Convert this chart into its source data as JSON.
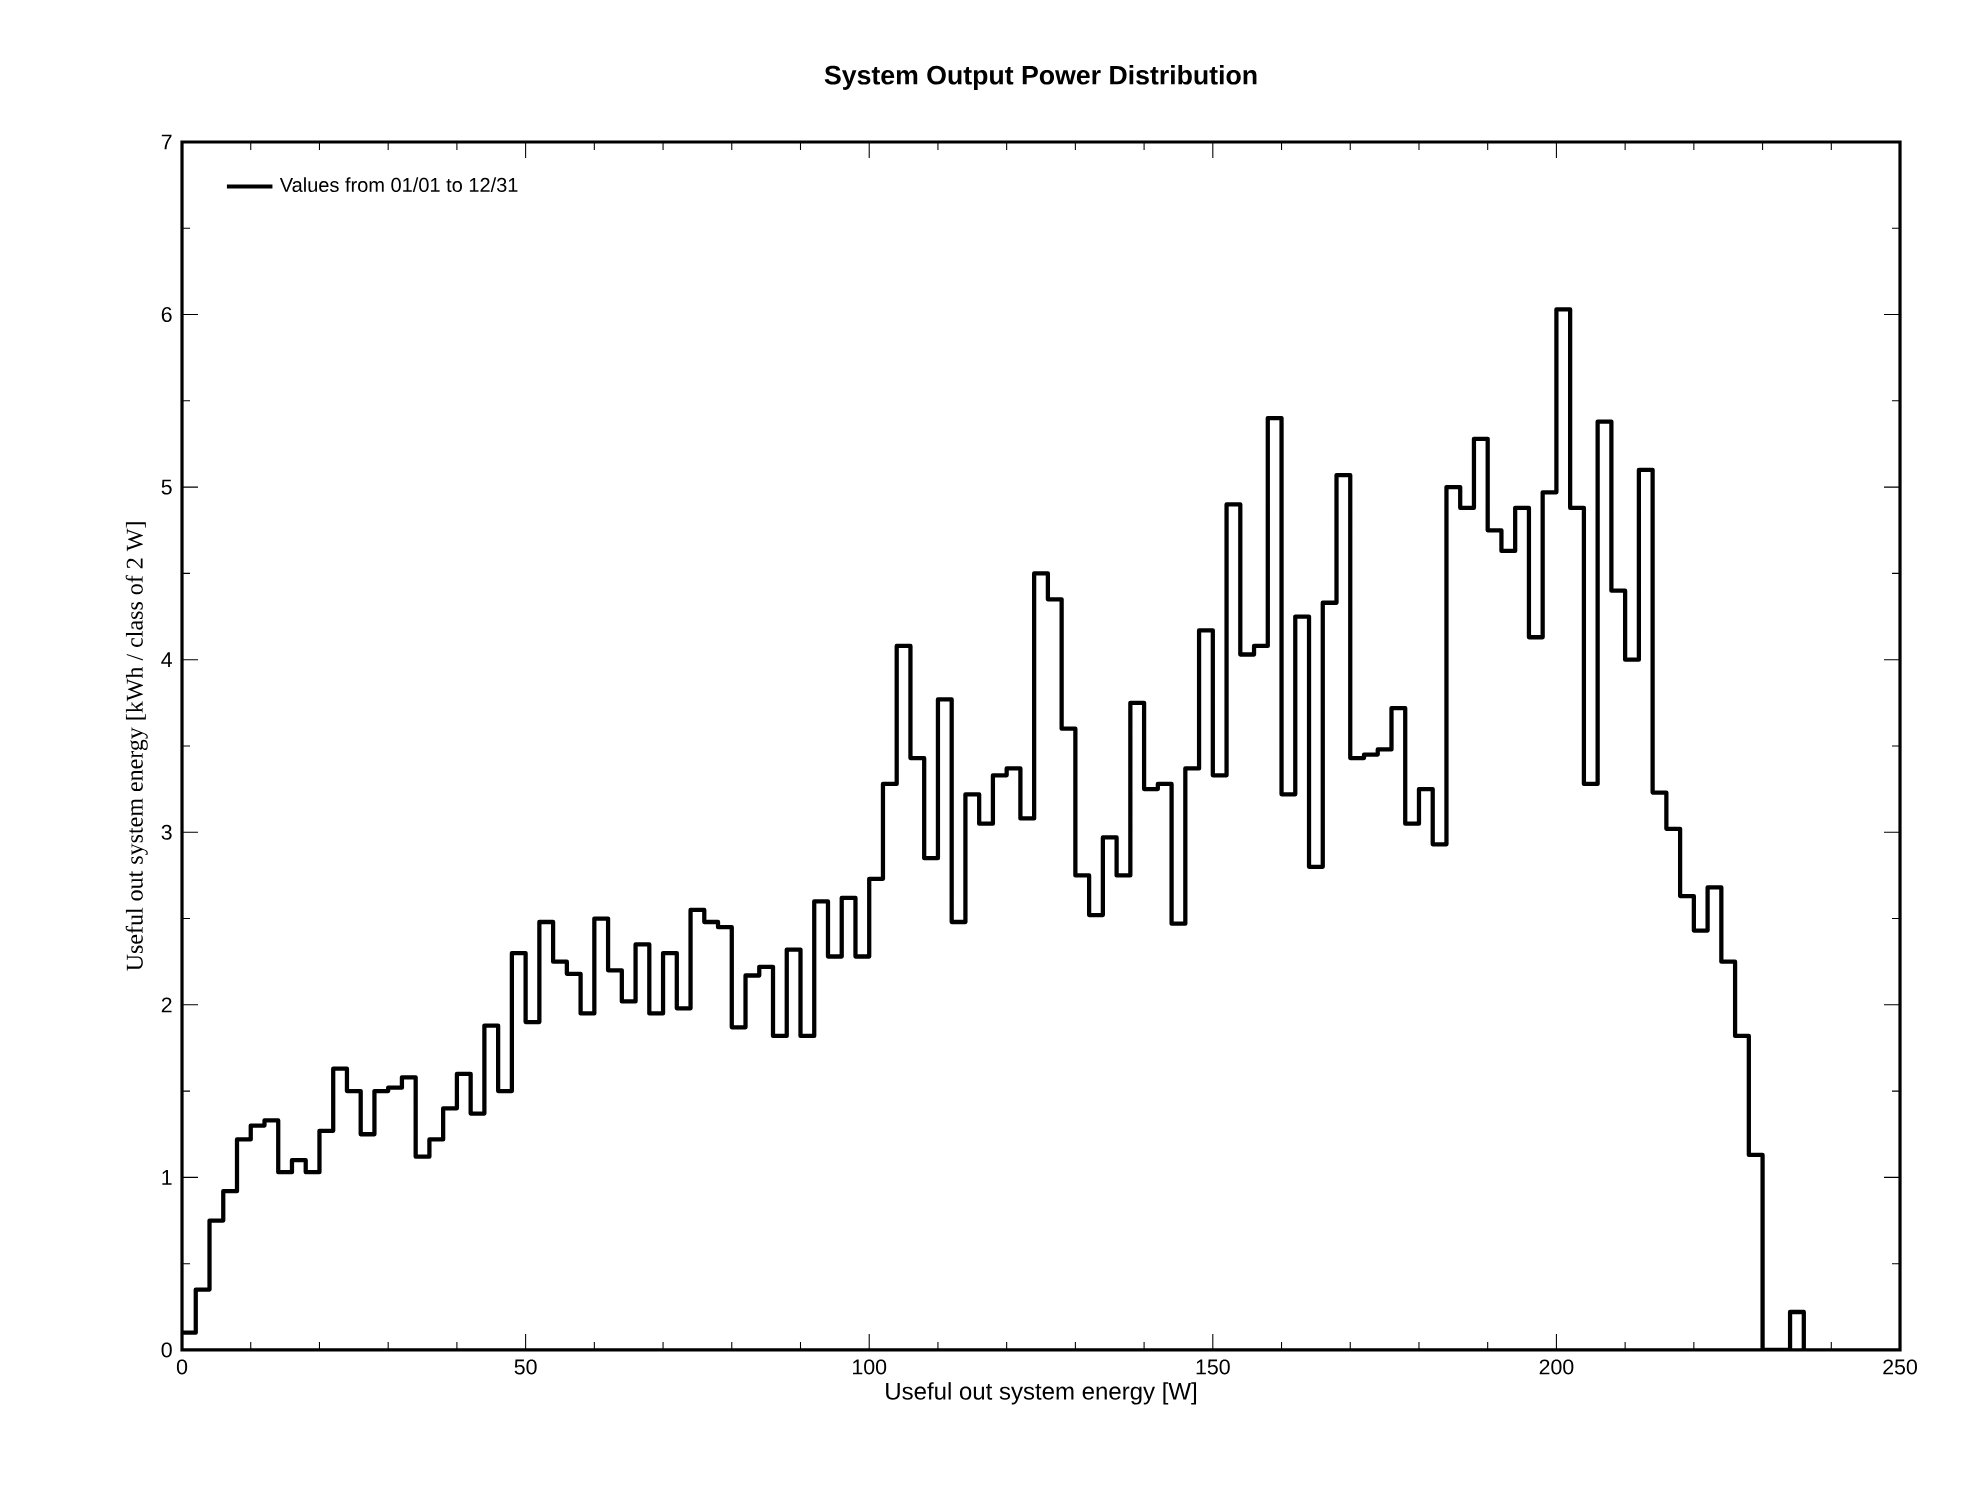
{
  "chart_data": {
    "type": "histogram",
    "title": "System Output Power Distribution",
    "xlabel": "Useful out system energy [W]",
    "ylabel": "Useful out system energy [kWh / class of 2 W]",
    "series": [
      {
        "name": "Values from 01/01 to 12/31",
        "color": "#000000",
        "values": [
          0.1,
          0.35,
          0.75,
          0.92,
          1.22,
          1.3,
          1.33,
          1.03,
          1.1,
          1.03,
          1.27,
          1.63,
          1.5,
          1.25,
          1.5,
          1.52,
          1.58,
          1.12,
          1.22,
          1.4,
          1.6,
          1.37,
          1.88,
          1.5,
          2.3,
          1.9,
          2.48,
          2.25,
          2.18,
          1.95,
          2.5,
          2.2,
          2.02,
          2.35,
          1.95,
          2.3,
          1.98,
          2.55,
          2.48,
          2.45,
          1.87,
          2.17,
          2.22,
          1.82,
          2.32,
          1.82,
          2.6,
          2.28,
          2.62,
          2.28,
          2.73,
          3.28,
          4.08,
          3.43,
          2.85,
          3.77,
          2.48,
          3.22,
          3.05,
          3.33,
          3.37,
          3.08,
          4.5,
          4.35,
          3.6,
          2.75,
          2.52,
          2.97,
          2.75,
          3.75,
          3.25,
          3.28,
          2.47,
          3.37,
          4.17,
          3.33,
          4.9,
          4.03,
          4.08,
          5.4,
          3.22,
          4.25,
          2.8,
          4.33,
          5.07,
          3.43,
          3.45,
          3.48,
          3.72,
          3.05,
          3.25,
          2.93,
          5.0,
          4.88,
          5.28,
          4.75,
          4.63,
          4.88,
          4.13,
          4.97,
          6.03,
          4.88,
          3.28,
          5.38,
          4.4,
          4.0,
          5.1,
          3.23,
          3.02,
          2.63,
          2.43,
          2.68,
          2.25,
          1.82,
          1.13,
          0,
          0,
          0.22
        ]
      }
    ],
    "bins": [
      0,
      2,
      4,
      6,
      8,
      10,
      12,
      14,
      16,
      18,
      20,
      22,
      24,
      26,
      28,
      30,
      32,
      34,
      36,
      38,
      40,
      42,
      44,
      46,
      48,
      50,
      52,
      54,
      56,
      58,
      60,
      62,
      64,
      66,
      68,
      70,
      72,
      74,
      76,
      78,
      80,
      82,
      84,
      86,
      88,
      90,
      92,
      94,
      96,
      98,
      100,
      102,
      104,
      106,
      108,
      110,
      112,
      114,
      116,
      118,
      120,
      122,
      124,
      126,
      128,
      130,
      132,
      134,
      136,
      138,
      140,
      142,
      144,
      146,
      148,
      150,
      152,
      154,
      156,
      158,
      160,
      162,
      164,
      166,
      168,
      170,
      172,
      174,
      176,
      178,
      180,
      182,
      184,
      186,
      188,
      190,
      192,
      194,
      196,
      198,
      200,
      202,
      204,
      206,
      208,
      210,
      212,
      214,
      216,
      218,
      220,
      222,
      224,
      226,
      228,
      230,
      232,
      234,
      236
    ],
    "xlim": [
      0,
      250
    ],
    "ylim": [
      0,
      7
    ],
    "xticks": [
      0,
      50,
      100,
      150,
      200,
      250
    ],
    "yticks": [
      0,
      1,
      2,
      3,
      4,
      5,
      6,
      7
    ],
    "legend": "top left",
    "grid": false,
    "marker": "none",
    "line_style": "solid"
  }
}
